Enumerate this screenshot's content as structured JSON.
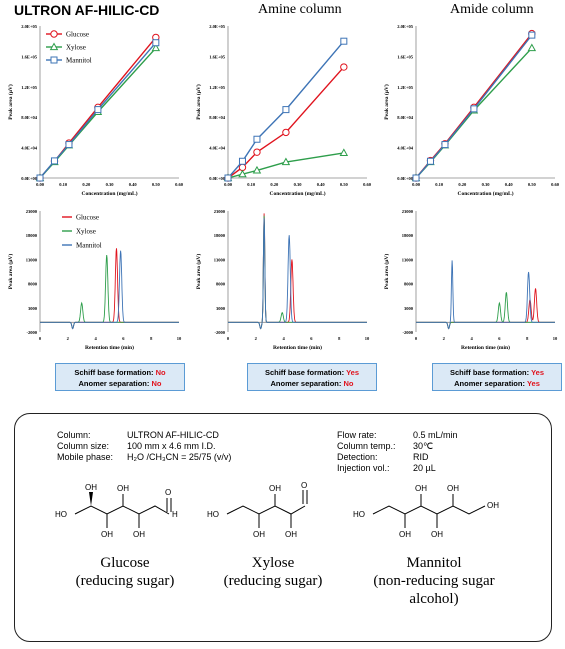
{
  "columns": [
    {
      "title": "ULTRON AF-HILIC-CD",
      "schiff_label": "Schiff base formation:",
      "schiff_value": "No",
      "anomer_label": "Anomer separation:",
      "anomer_value": "No"
    },
    {
      "title": "Amine column",
      "schiff_label": "Schiff base formation:",
      "schiff_value": "Yes",
      "anomer_label": "Anomer separation:",
      "anomer_value": "No"
    },
    {
      "title": "Amide column",
      "schiff_label": "Schiff base formation:",
      "schiff_value": "Yes",
      "anomer_label": "Anomer separation:",
      "anomer_value": "Yes"
    }
  ],
  "colors": {
    "Glucose": "#e0141e",
    "Xylose": "#2e9e4b",
    "Mannitol": "#3e74b6",
    "accent_box": "#dbe9f6"
  },
  "chart_data": [
    {
      "type": "line",
      "panel": "ULTRON AF-HILIC-CD calibration",
      "xlabel": "Concentration  (mg/mL)",
      "ylabel": "Peak area (µV)",
      "xlim": [
        0,
        0.6
      ],
      "ylim": [
        0,
        200000
      ],
      "x_ticks": [
        "0.00",
        "0.10",
        "0.20",
        "0.30",
        "0.40",
        "0.50",
        "0.60"
      ],
      "y_ticks": [
        "0.0E+00",
        "4.0E+04",
        "8.0E+04",
        "1.2E+05",
        "1.6E+05",
        "2.0E+05"
      ],
      "legend": "top-left",
      "series": [
        {
          "name": "Glucose",
          "marker": "circle",
          "points": [
            [
              0,
              0
            ],
            [
              0.0625,
              22000
            ],
            [
              0.125,
              46000
            ],
            [
              0.25,
              93000
            ],
            [
              0.5,
              185000
            ]
          ]
        },
        {
          "name": "Xylose",
          "marker": "triangle",
          "points": [
            [
              0,
              0
            ],
            [
              0.0625,
              21000
            ],
            [
              0.125,
              43000
            ],
            [
              0.25,
              87000
            ],
            [
              0.5,
              171000
            ]
          ]
        },
        {
          "name": "Mannitol",
          "marker": "square",
          "points": [
            [
              0,
              0
            ],
            [
              0.0625,
              22500
            ],
            [
              0.125,
              44000
            ],
            [
              0.25,
              90000
            ],
            [
              0.5,
              178000
            ]
          ]
        }
      ]
    },
    {
      "type": "line",
      "panel": "Amine column calibration",
      "xlabel": "Concentration  (mg/mL)",
      "ylabel": "Peak area (µV)",
      "xlim": [
        0,
        0.6
      ],
      "ylim": [
        0,
        200000
      ],
      "x_ticks": [
        "0.00",
        "0.10",
        "0.20",
        "0.30",
        "0.40",
        "0.50",
        "0.60"
      ],
      "y_ticks": [
        "0.0E+00",
        "4.0E+04",
        "8.0E+04",
        "1.2E+05",
        "1.6E+05",
        "2.0E+05"
      ],
      "series": [
        {
          "name": "Glucose",
          "marker": "circle",
          "points": [
            [
              0,
              0
            ],
            [
              0.0625,
              14000
            ],
            [
              0.125,
              34000
            ],
            [
              0.25,
              60000
            ],
            [
              0.5,
              146000
            ]
          ]
        },
        {
          "name": "Xylose",
          "marker": "triangle",
          "points": [
            [
              0,
              0
            ],
            [
              0.0625,
              5000
            ],
            [
              0.125,
              10000
            ],
            [
              0.25,
              21000
            ],
            [
              0.5,
              33000
            ]
          ]
        },
        {
          "name": "Mannitol",
          "marker": "square",
          "points": [
            [
              0,
              0
            ],
            [
              0.0625,
              22000
            ],
            [
              0.125,
              51000
            ],
            [
              0.25,
              90000
            ],
            [
              0.5,
              180000
            ]
          ]
        }
      ]
    },
    {
      "type": "line",
      "panel": "Amide column calibration",
      "xlabel": "Concentration  (mg/mL)",
      "ylabel": "Peak area (µV)",
      "xlim": [
        0,
        0.6
      ],
      "ylim": [
        0,
        200000
      ],
      "x_ticks": [
        "0.00",
        "0.10",
        "0.20",
        "0.30",
        "0.40",
        "0.50",
        "0.60"
      ],
      "y_ticks": [
        "0.0E+00",
        "4.0E+04",
        "8.0E+04",
        "1.2E+05",
        "1.6E+05",
        "2.0E+05"
      ],
      "series": [
        {
          "name": "Glucose",
          "marker": "circle",
          "points": [
            [
              0,
              0
            ],
            [
              0.0625,
              23000
            ],
            [
              0.125,
              45000
            ],
            [
              0.25,
              93000
            ],
            [
              0.5,
              190000
            ]
          ]
        },
        {
          "name": "Xylose",
          "marker": "triangle",
          "points": [
            [
              0,
              0
            ],
            [
              0.0625,
              21000
            ],
            [
              0.125,
              43000
            ],
            [
              0.25,
              89000
            ],
            [
              0.5,
              171000
            ]
          ]
        },
        {
          "name": "Mannitol",
          "marker": "square",
          "points": [
            [
              0,
              0
            ],
            [
              0.0625,
              22000
            ],
            [
              0.125,
              44000
            ],
            [
              0.25,
              91000
            ],
            [
              0.5,
              188000
            ]
          ]
        }
      ]
    },
    {
      "type": "line",
      "panel": "ULTRON AF-HILIC-CD chromatogram",
      "xlabel": "Retention time (min)",
      "ylabel": "Peak area (µV)",
      "xlim": [
        0,
        10
      ],
      "ylim": [
        -2000,
        23000
      ],
      "x_ticks": [
        "0",
        "2",
        "4",
        "6",
        "8",
        "10"
      ],
      "y_ticks": [
        "-2000",
        "3000",
        "8000",
        "13000",
        "18000",
        "23000"
      ],
      "legend": "top-right",
      "series": [
        {
          "name": "Glucose",
          "peaks": [
            [
              5.5,
              15300
            ]
          ]
        },
        {
          "name": "Xylose",
          "peaks": [
            [
              4.8,
              13900
            ],
            [
              3.0,
              4000
            ]
          ]
        },
        {
          "name": "Mannitol",
          "peaks": [
            [
              5.8,
              14800
            ]
          ]
        }
      ]
    },
    {
      "type": "line",
      "panel": "Amine column chromatogram",
      "xlabel": "Retention time (min)",
      "ylabel": "Peak area (µV)",
      "xlim": [
        0,
        10
      ],
      "ylim": [
        -2000,
        23000
      ],
      "x_ticks": [
        "0",
        "2",
        "4",
        "6",
        "8",
        "10"
      ],
      "y_ticks": [
        "-2000",
        "3000",
        "8000",
        "13000",
        "18000",
        "23000"
      ],
      "series": [
        {
          "name": "Glucose",
          "peaks": [
            [
              2.6,
              22500
            ],
            [
              4.6,
              13000
            ]
          ]
        },
        {
          "name": "Xylose",
          "peaks": [
            [
              2.6,
              22000
            ],
            [
              3.9,
              2000
            ]
          ]
        },
        {
          "name": "Mannitol",
          "peaks": [
            [
              2.6,
              21500
            ],
            [
              4.4,
              18000
            ]
          ]
        }
      ]
    },
    {
      "type": "line",
      "panel": "Amide column chromatogram",
      "xlabel": "Retention time (min)",
      "ylabel": "Peak area (µV)",
      "xlim": [
        0,
        10
      ],
      "ylim": [
        -2000,
        23000
      ],
      "x_ticks": [
        "0",
        "2",
        "4",
        "6",
        "8",
        "10"
      ],
      "y_ticks": [
        "-2000",
        "3000",
        "8000",
        "13000",
        "18000",
        "23000"
      ],
      "series": [
        {
          "name": "Glucose",
          "peaks": [
            [
              8.2,
              4700
            ],
            [
              8.6,
              7000
            ]
          ]
        },
        {
          "name": "Xylose",
          "peaks": [
            [
              6.0,
              4000
            ],
            [
              6.5,
              6200
            ]
          ]
        },
        {
          "name": "Mannitol",
          "peaks": [
            [
              2.6,
              12800
            ],
            [
              8.1,
              10400
            ]
          ]
        }
      ]
    }
  ],
  "conditions": {
    "left": [
      {
        "k": "Column:",
        "v": "ULTRON AF-HILIC-CD"
      },
      {
        "k": "Column size:",
        "v": "100 mm x 4.6 mm I.D."
      },
      {
        "k": "Mobile phase:",
        "v": "H₂O /CH₃CN = 25/75 (v/v)"
      }
    ],
    "right": [
      {
        "k": "Flow rate:",
        "v": "0.5 mL/min"
      },
      {
        "k": "Column temp.:",
        "v": "30℃"
      },
      {
        "k": "Detection:",
        "v": "RID"
      },
      {
        "k": "Injection vol.:",
        "v": "20 µL"
      }
    ]
  },
  "molecules": [
    {
      "name": "Glucose",
      "desc": "(reducing sugar)"
    },
    {
      "name": "Xylose",
      "desc": "(reducing sugar)"
    },
    {
      "name": "Mannitol",
      "desc": "(non-reducing sugar alcohol)"
    }
  ],
  "struct_labels": {
    "HO": "HO",
    "OH": "OH",
    "O": "O",
    "H": "H"
  }
}
